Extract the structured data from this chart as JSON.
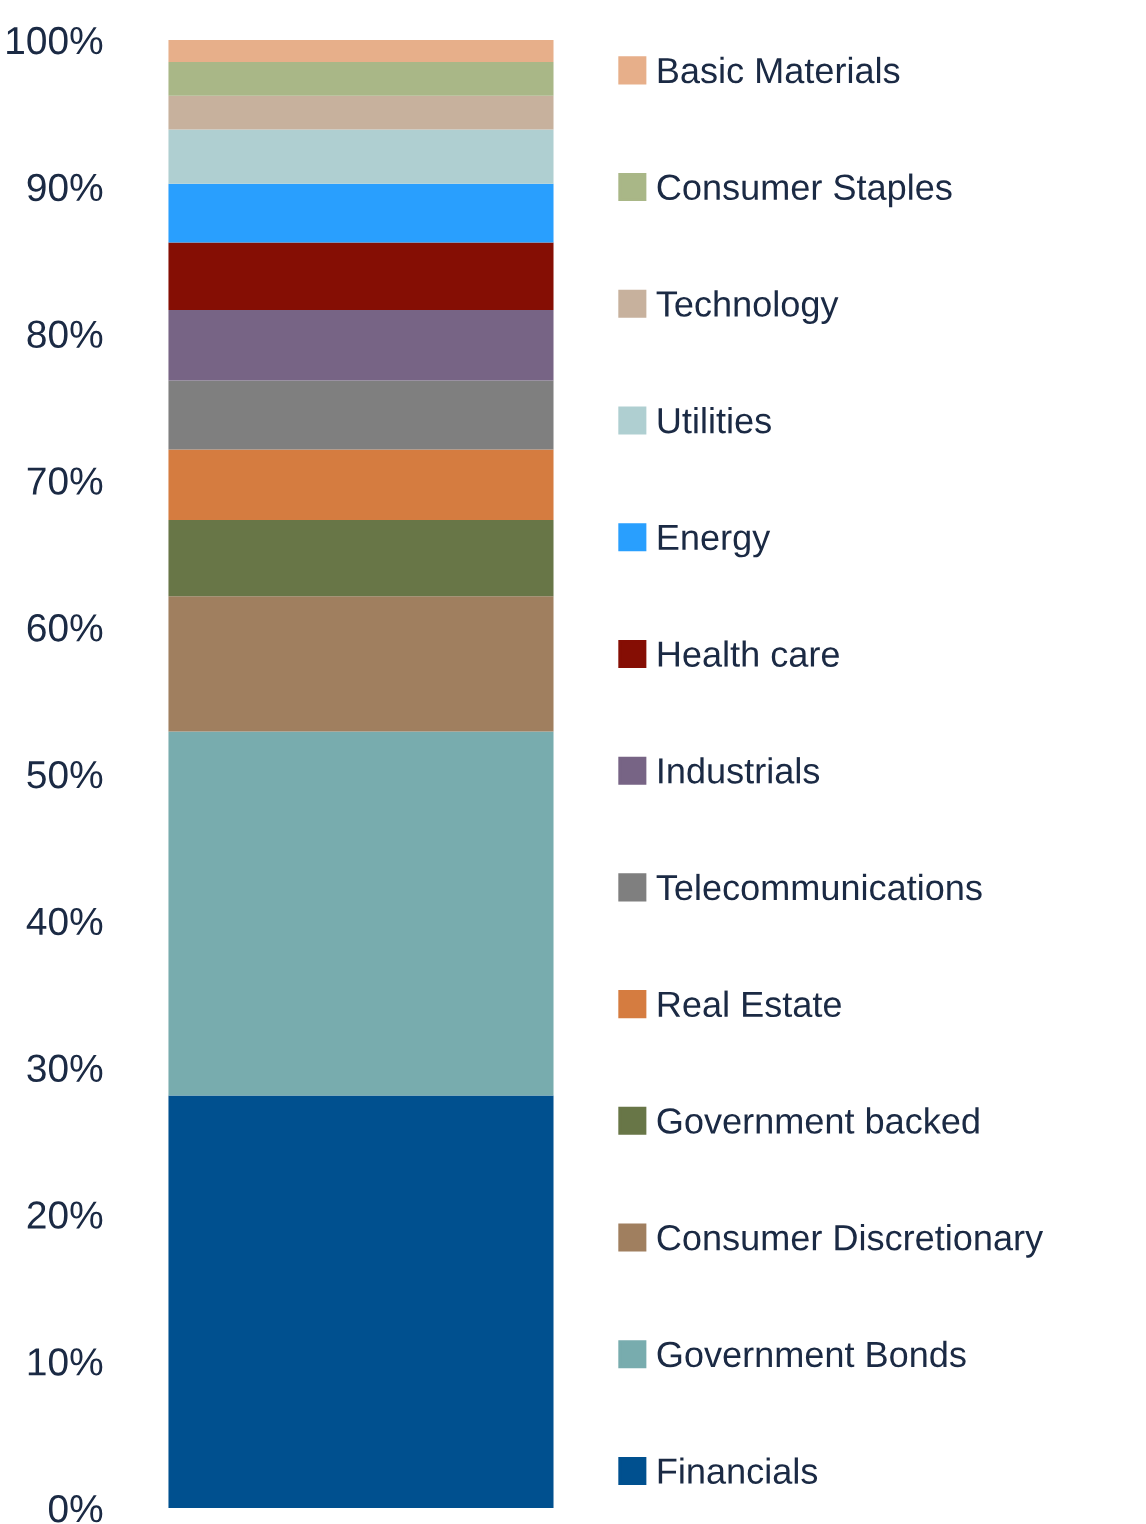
{
  "chart_data": {
    "type": "bar",
    "stacked": true,
    "categories": [
      null
    ],
    "series": [
      {
        "name": "Financials",
        "color": "#00508f",
        "values": [
          28.1
        ]
      },
      {
        "name": "Government Bonds",
        "color": "#78acae",
        "values": [
          24.8
        ]
      },
      {
        "name": "Consumer Discretionary",
        "color": "#a07f5f",
        "values": [
          9.2
        ]
      },
      {
        "name": "Government backed",
        "color": "#687647",
        "values": [
          5.2
        ]
      },
      {
        "name": "Real Estate",
        "color": "#d57c40",
        "values": [
          4.8
        ]
      },
      {
        "name": "Telecommunications",
        "color": "#7f7f7f",
        "values": [
          4.7
        ]
      },
      {
        "name": "Industrials",
        "color": "#776485",
        "values": [
          4.8
        ]
      },
      {
        "name": "Health care",
        "color": "#850e04",
        "values": [
          4.6
        ]
      },
      {
        "name": "Energy",
        "color": "#299ffe",
        "values": [
          4.0
        ]
      },
      {
        "name": "Utilities",
        "color": "#afcfd1",
        "values": [
          3.7
        ]
      },
      {
        "name": "Technology",
        "color": "#c7b19d",
        "values": [
          2.3
        ]
      },
      {
        "name": "Consumer Staples",
        "color": "#a9b787",
        "values": [
          2.3
        ]
      },
      {
        "name": "Basic Materials",
        "color": "#e7af8a",
        "values": [
          1.5
        ]
      }
    ],
    "ylim": [
      0,
      100
    ],
    "yticks": [
      {
        "value": 0,
        "label": "0%"
      },
      {
        "value": 10,
        "label": "10%"
      },
      {
        "value": 20,
        "label": "20%"
      },
      {
        "value": 30,
        "label": "30%"
      },
      {
        "value": 40,
        "label": "40%"
      },
      {
        "value": 50,
        "label": "50%"
      },
      {
        "value": 60,
        "label": "60%"
      },
      {
        "value": 70,
        "label": "70%"
      },
      {
        "value": 80,
        "label": "80%"
      },
      {
        "value": 90,
        "label": "90%"
      },
      {
        "value": 100,
        "label": "100%"
      }
    ],
    "tick_labels": "y",
    "grid": false,
    "legend": "right"
  }
}
